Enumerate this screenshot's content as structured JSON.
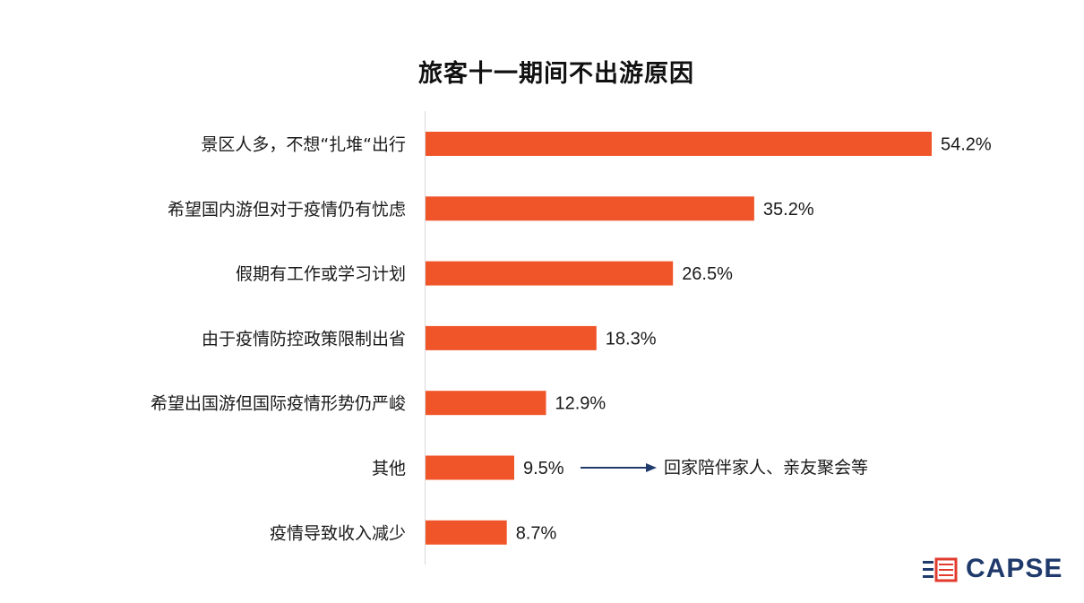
{
  "chart_data": {
    "type": "bar",
    "orientation": "horizontal",
    "title": "旅客十一期间不出游原因",
    "categories": [
      "景区人多，不想“扎堆“出行",
      "希望国内游但对于疫情仍有忧虑",
      "假期有工作或学习计划",
      "由于疫情防控政策限制出省",
      "希望出国游但国际疫情形势仍严峻",
      "其他",
      "疫情导致收入减少"
    ],
    "values": [
      54.2,
      35.2,
      26.5,
      18.3,
      12.9,
      9.5,
      8.7
    ],
    "value_labels": [
      "54.2%",
      "35.2%",
      "26.5%",
      "18.3%",
      "12.9%",
      "9.5%",
      "8.7%"
    ],
    "unit": "%",
    "xlim": [
      0,
      54.2
    ],
    "grid": false,
    "legend": "none",
    "bar_color": "#f0552a",
    "annotation": {
      "category": "其他",
      "text": "回家陪伴家人、亲友聚会等",
      "arrow_color": "#1f3a6b"
    }
  },
  "logo": {
    "text": "CAPSE",
    "icon": "capse-emblem-icon",
    "color": "#1f3a6b",
    "accent": "#e23b2e"
  }
}
